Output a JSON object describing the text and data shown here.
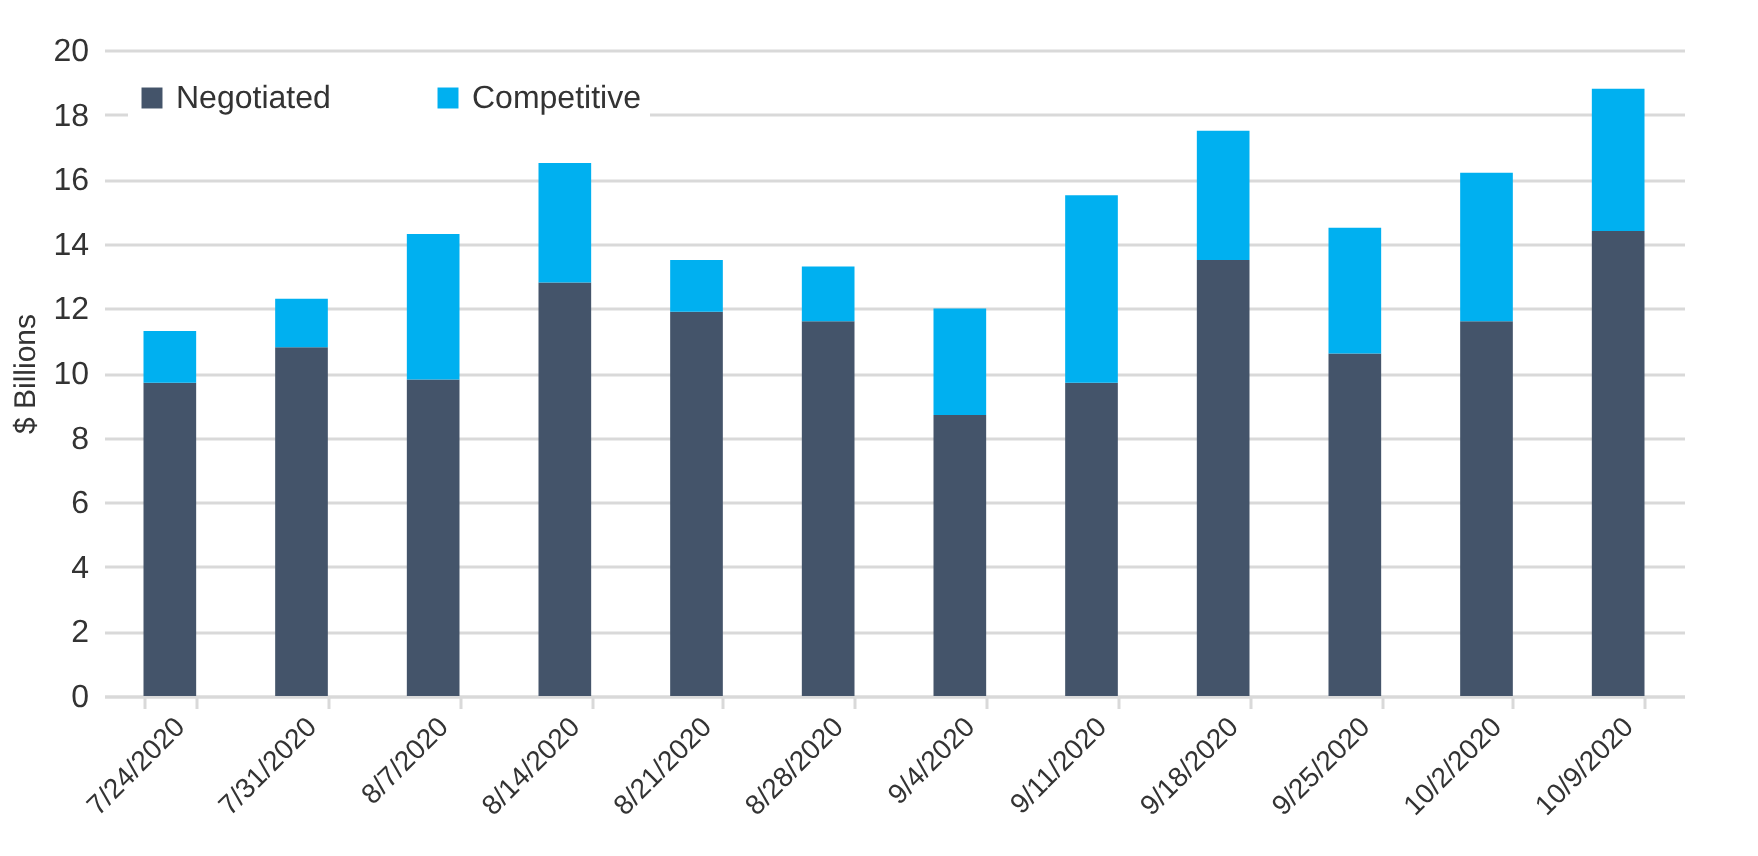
{
  "chart_data": {
    "type": "bar",
    "ylabel": "$ Billions",
    "stacked": true,
    "grid": "y",
    "legend": "top left",
    "categories": [
      "7/24/2020",
      "7/31/2020",
      "8/7/2020",
      "8/14/2020",
      "8/21/2020",
      "8/28/2020",
      "9/4/2020",
      "9/11/2020",
      "9/18/2020",
      "9/25/2020",
      "10/2/2020",
      "10/9/2020"
    ],
    "series": [
      {
        "name": "Negotiated",
        "color": "#44546a",
        "values": [
          9.7,
          10.8,
          9.8,
          12.8,
          11.9,
          11.6,
          8.7,
          9.7,
          13.5,
          10.6,
          11.6,
          14.4
        ]
      },
      {
        "name": "Competitive",
        "color": "#00b0f0",
        "values": [
          1.6,
          1.5,
          4.5,
          3.7,
          1.6,
          1.7,
          3.3,
          5.8,
          4.0,
          3.9,
          4.6,
          4.4
        ]
      }
    ],
    "ylim": [
      0,
      20
    ],
    "yticks": [
      0,
      2,
      4,
      6,
      8,
      10,
      12,
      14,
      16,
      18,
      20
    ]
  }
}
